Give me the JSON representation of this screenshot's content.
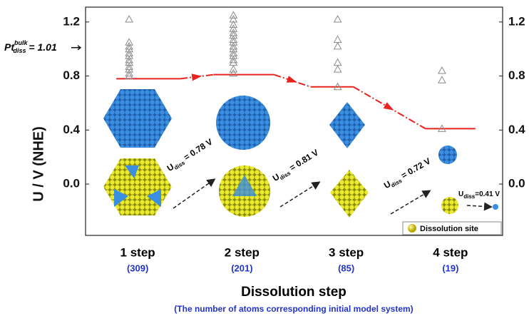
{
  "chart_data": {
    "type": "line",
    "y_label": "U / V (NHE)",
    "x_label": "Dissolution step",
    "x_sublabel": "(The number of atoms corresponding initial model system)",
    "categories": [
      "1 step",
      "2 step",
      "3 step",
      "4 step"
    ],
    "category_notes": [
      "(309)",
      "(201)",
      "(85)",
      "(19)"
    ],
    "values": [
      0.78,
      0.81,
      0.72,
      0.41
    ],
    "color": "#e8231e",
    "points": [
      [
        1.22,
        1.05,
        1.02,
        1.0,
        0.97,
        0.95,
        0.92,
        0.9,
        0.87,
        0.85,
        0.82,
        0.8
      ],
      [
        1.25,
        1.22,
        1.18,
        1.15,
        1.12,
        1.1,
        1.07,
        1.05,
        1.02,
        1.0,
        0.97,
        0.95,
        0.92,
        0.9,
        0.85,
        0.82
      ],
      [
        1.22,
        1.07,
        1.02,
        0.9,
        0.85,
        0.72
      ],
      [
        0.84,
        0.77,
        0.41
      ]
    ],
    "points_color": "#8a8a8a",
    "ylim": [
      -0.38,
      1.31
    ],
    "yticks": [
      {
        "value": 0,
        "label": "0.0"
      },
      0.4,
      0.8,
      1.2
    ],
    "bulk": {
      "base": "Pt",
      "sup": "bulk",
      "sub": "diss",
      "value": 1.01,
      "label": " = 1.01"
    },
    "annotations": [
      {
        "base": "U",
        "sub": "diss",
        "text": " = 0.78 V"
      },
      {
        "base": "U",
        "sub": "diss",
        "text": " = 0.81 V"
      },
      {
        "base": "U",
        "sub": "diss",
        "text": " = 0.72 V"
      },
      {
        "base": "U",
        "sub": "diss",
        "text": "=0.41 V"
      }
    ],
    "legend": "Dissolution site"
  }
}
